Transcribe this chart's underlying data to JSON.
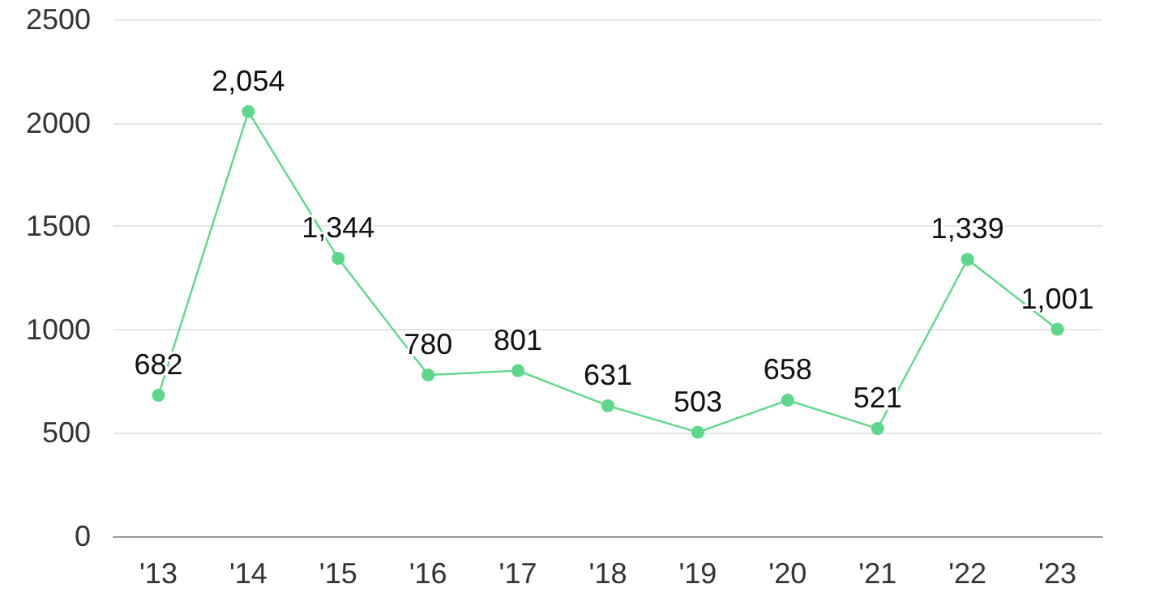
{
  "chart_data": {
    "type": "line",
    "categories": [
      "'13",
      "'14",
      "'15",
      "'16",
      "'17",
      "'18",
      "'19",
      "'20",
      "'21",
      "'22",
      "'23"
    ],
    "series": [
      {
        "color": "#5dd88a",
        "values": [
          682,
          2054,
          1344,
          780,
          801,
          631,
          503,
          658,
          521,
          1339,
          1001
        ],
        "value_labels": [
          "682",
          "2,054",
          "1,344",
          "780",
          "801",
          "631",
          "503",
          "658",
          "521",
          "1,339",
          "1,001"
        ]
      }
    ],
    "ylim": [
      0,
      2500
    ],
    "yticks": [
      0,
      500,
      1000,
      1500,
      2000,
      2500
    ],
    "grid": "y",
    "marker": "circle",
    "line_style": "solid"
  }
}
